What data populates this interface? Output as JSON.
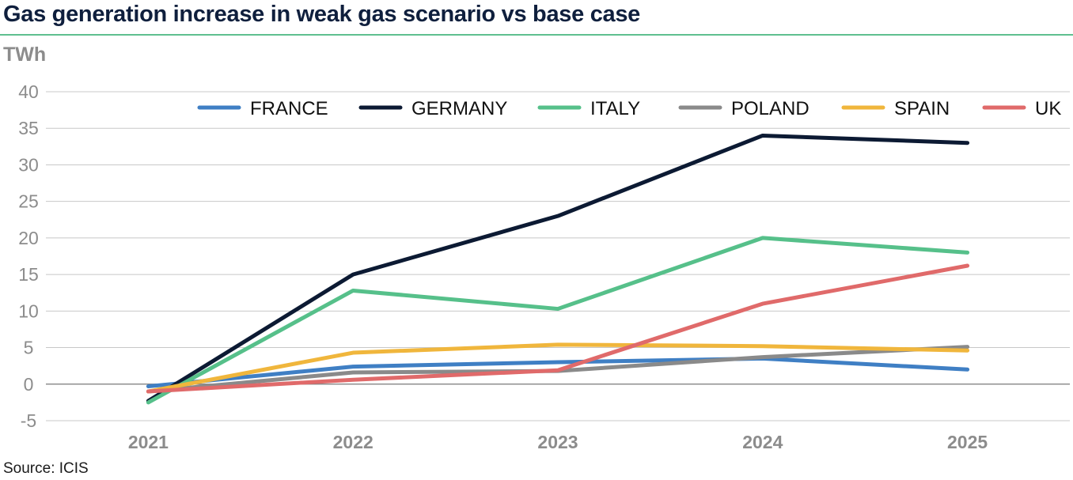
{
  "header": {
    "title": "Gas generation increase in weak gas scenario vs base case"
  },
  "footer": {
    "source": "Source: ICIS"
  },
  "chart_data": {
    "type": "line",
    "title": "Gas generation increase in weak gas scenario vs base case",
    "ylabel": "TWh",
    "xlabel": "",
    "categories": [
      "2021",
      "2022",
      "2023",
      "2024",
      "2025"
    ],
    "ylim": [
      -5,
      40
    ],
    "yticks": [
      -5,
      0,
      5,
      10,
      15,
      20,
      25,
      30,
      35,
      40
    ],
    "grid": true,
    "legend_position": "top",
    "series": [
      {
        "name": "FRANCE",
        "color": "#3f7fc4",
        "values": [
          -0.3,
          2.4,
          3.0,
          3.5,
          2.0
        ]
      },
      {
        "name": "GERMANY",
        "color": "#0c1a33",
        "values": [
          -2.3,
          15.0,
          23.0,
          34.0,
          33.0
        ]
      },
      {
        "name": "ITALY",
        "color": "#56c08a",
        "values": [
          -2.5,
          12.8,
          10.3,
          20.0,
          18.0
        ]
      },
      {
        "name": "POLAND",
        "color": "#8a8a8a",
        "values": [
          -1.0,
          1.6,
          1.8,
          3.7,
          5.1
        ]
      },
      {
        "name": "SPAIN",
        "color": "#f0b63c",
        "values": [
          -1.0,
          4.3,
          5.4,
          5.2,
          4.6
        ]
      },
      {
        "name": "UK",
        "color": "#e06a6a",
        "values": [
          -1.0,
          0.6,
          1.9,
          11.0,
          16.2
        ]
      }
    ]
  }
}
